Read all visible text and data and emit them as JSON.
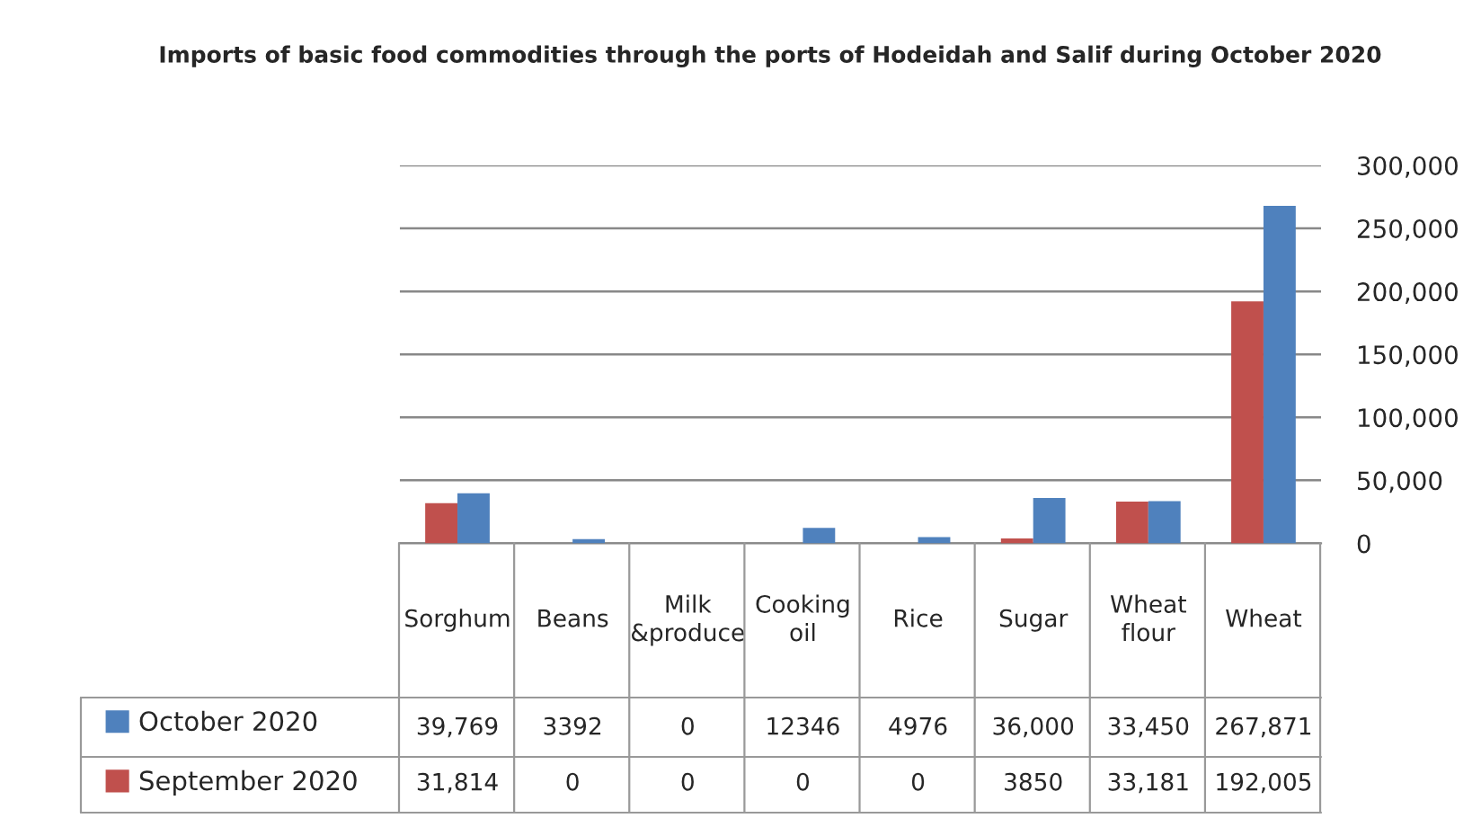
{
  "chart_data": {
    "type": "bar",
    "title": "Imports of basic food commodities through the ports of Hodeidah and Salif during October 2020",
    "categories": [
      "Sorghum",
      "Beans",
      "Milk &produce",
      "Cooking oil",
      "Rice",
      "Sugar",
      "Wheat flour",
      "Wheat"
    ],
    "series": [
      {
        "name": "September 2020",
        "color": "#c0504d",
        "values": [
          31814,
          0,
          0,
          0,
          0,
          3850,
          33181,
          192005
        ],
        "value_labels": [
          "31,814",
          "0",
          "0",
          "0",
          "0",
          "3850",
          "33,181",
          "192,005"
        ]
      },
      {
        "name": "October 2020",
        "color": "#4f81bd",
        "values": [
          39769,
          3392,
          0,
          12346,
          4976,
          36000,
          33450,
          267871
        ],
        "value_labels": [
          "39,769",
          "3392",
          "0",
          "12346",
          "4976",
          "36,000",
          "33,450",
          "267,871"
        ]
      }
    ],
    "ylim": [
      0,
      300000
    ],
    "yticks": [
      0,
      {
        "value": 50000,
        "label": "50,000"
      },
      {
        "value": 100000,
        "label": "100,000"
      },
      {
        "value": 150000,
        "label": "150,000"
      },
      {
        "value": 200000,
        "label": "200,000"
      },
      {
        "value": 250000,
        "label": "250,000"
      },
      {
        "value": 300000,
        "label": "300,000"
      }
    ],
    "grid": "y",
    "legend": "bottom left"
  }
}
